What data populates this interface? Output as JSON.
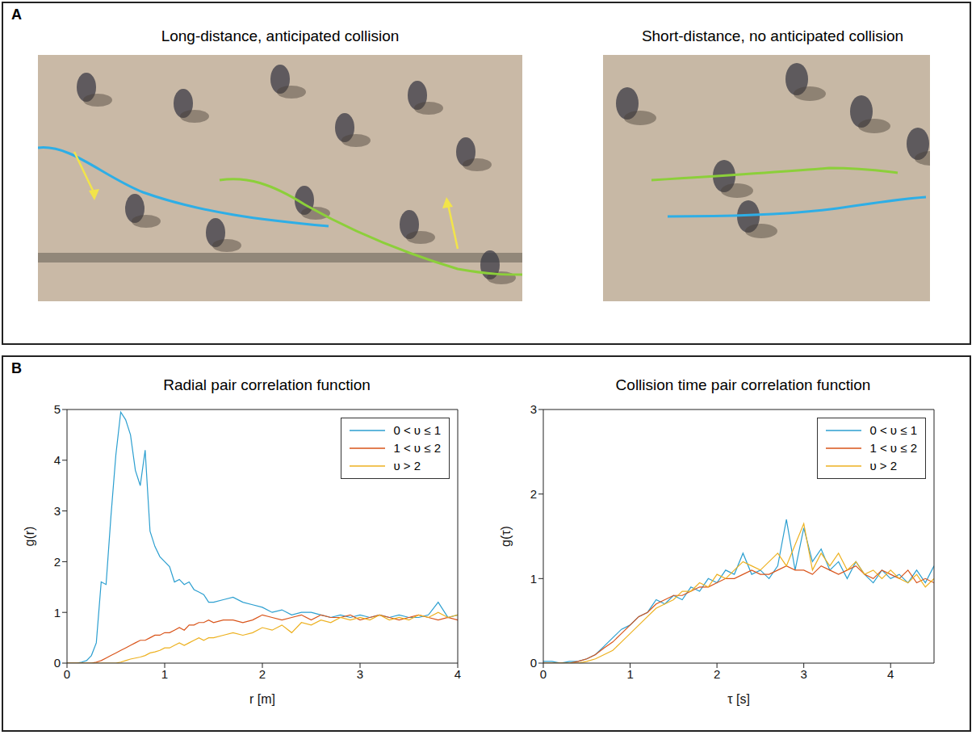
{
  "panel_a": {
    "letter": "A",
    "images": [
      {
        "title": "Long-distance, anticipated collision"
      },
      {
        "title": "Short-distance, no anticipated collision"
      }
    ]
  },
  "panel_b": {
    "letter": "B"
  },
  "chart_data": [
    {
      "type": "line",
      "title": "Radial pair correlation function",
      "x_label": "r  [m]",
      "y_label": "g(r)",
      "xlim": [
        0,
        4
      ],
      "xticks": [
        0,
        1,
        2,
        3,
        4
      ],
      "ylim": [
        0,
        5
      ],
      "yticks": [
        0,
        1,
        2,
        3,
        4,
        5
      ],
      "grid": false,
      "legend": "top-right",
      "x": [
        0,
        0.05,
        0.1,
        0.15,
        0.2,
        0.25,
        0.3,
        0.35,
        0.4,
        0.45,
        0.5,
        0.55,
        0.6,
        0.65,
        0.7,
        0.75,
        0.8,
        0.85,
        0.9,
        0.95,
        1.0,
        1.05,
        1.1,
        1.15,
        1.2,
        1.25,
        1.3,
        1.35,
        1.4,
        1.45,
        1.5,
        1.6,
        1.7,
        1.8,
        1.9,
        2.0,
        2.1,
        2.2,
        2.3,
        2.4,
        2.5,
        2.6,
        2.7,
        2.8,
        2.9,
        3.0,
        3.1,
        3.2,
        3.3,
        3.4,
        3.5,
        3.6,
        3.7,
        3.8,
        3.9,
        4.0
      ],
      "series": [
        {
          "name": "0 < υ ≤ 1",
          "color": "#2c9fd0",
          "values": [
            0,
            0,
            0,
            0.02,
            0.05,
            0.15,
            0.4,
            1.6,
            1.55,
            2.9,
            4.1,
            4.95,
            4.8,
            4.5,
            3.8,
            3.5,
            4.2,
            2.6,
            2.3,
            2.1,
            2.0,
            1.9,
            1.6,
            1.65,
            1.55,
            1.6,
            1.45,
            1.4,
            1.35,
            1.2,
            1.2,
            1.25,
            1.3,
            1.2,
            1.15,
            1.1,
            1.0,
            1.05,
            0.95,
            1.0,
            1.0,
            0.95,
            0.9,
            0.95,
            0.9,
            0.95,
            0.9,
            0.95,
            0.9,
            0.95,
            0.9,
            0.9,
            0.95,
            1.2,
            0.9,
            0.95
          ]
        },
        {
          "name": "1 < υ ≤ 2",
          "color": "#d9541a",
          "values": [
            0,
            0,
            0,
            0,
            0,
            0,
            0.02,
            0.05,
            0.1,
            0.15,
            0.2,
            0.25,
            0.3,
            0.35,
            0.4,
            0.45,
            0.45,
            0.5,
            0.55,
            0.55,
            0.6,
            0.6,
            0.65,
            0.7,
            0.65,
            0.75,
            0.75,
            0.8,
            0.8,
            0.85,
            0.8,
            0.85,
            0.85,
            0.8,
            0.85,
            0.95,
            0.9,
            0.85,
            0.9,
            0.95,
            0.85,
            0.95,
            0.9,
            0.9,
            0.95,
            0.85,
            0.9,
            0.95,
            0.9,
            0.85,
            0.9,
            0.95,
            0.9,
            0.85,
            0.9,
            0.85
          ]
        },
        {
          "name": "υ > 2",
          "color": "#edb120",
          "values": [
            0,
            0,
            0,
            0,
            0,
            0,
            0,
            0,
            0,
            0,
            0,
            0.02,
            0.05,
            0.08,
            0.1,
            0.12,
            0.15,
            0.2,
            0.22,
            0.25,
            0.3,
            0.3,
            0.35,
            0.4,
            0.35,
            0.4,
            0.45,
            0.5,
            0.45,
            0.5,
            0.5,
            0.55,
            0.6,
            0.55,
            0.6,
            0.7,
            0.65,
            0.75,
            0.6,
            0.8,
            0.75,
            0.85,
            0.8,
            0.9,
            0.85,
            0.9,
            0.85,
            0.95,
            0.85,
            0.9,
            0.85,
            0.95,
            0.9,
            1.0,
            0.9,
            0.95
          ]
        }
      ]
    },
    {
      "type": "line",
      "title": "Collision time pair correlation function",
      "x_label": "τ  [s]",
      "y_label": "g(τ)",
      "xlim": [
        0,
        4.5
      ],
      "xticks": [
        0,
        1,
        2,
        3,
        4
      ],
      "ylim": [
        0,
        3
      ],
      "yticks": [
        0,
        1,
        2,
        3
      ],
      "grid": false,
      "legend": "top-right",
      "x": [
        0,
        0.1,
        0.2,
        0.3,
        0.4,
        0.5,
        0.6,
        0.7,
        0.8,
        0.9,
        1.0,
        1.1,
        1.2,
        1.3,
        1.4,
        1.5,
        1.6,
        1.7,
        1.8,
        1.9,
        2.0,
        2.1,
        2.2,
        2.3,
        2.4,
        2.5,
        2.6,
        2.7,
        2.8,
        2.9,
        3.0,
        3.1,
        3.2,
        3.3,
        3.4,
        3.5,
        3.6,
        3.7,
        3.8,
        3.9,
        4.0,
        4.1,
        4.2,
        4.3,
        4.4,
        4.5
      ],
      "series": [
        {
          "name": "0 < υ ≤ 1",
          "color": "#2c9fd0",
          "values": [
            0.02,
            0.02,
            0,
            0.02,
            0.02,
            0.05,
            0.1,
            0.2,
            0.3,
            0.4,
            0.45,
            0.55,
            0.6,
            0.75,
            0.7,
            0.8,
            0.75,
            0.9,
            0.85,
            1.0,
            0.95,
            1.1,
            1.05,
            1.3,
            1.05,
            1.1,
            1.0,
            1.15,
            1.7,
            1.1,
            1.6,
            1.2,
            1.35,
            1.1,
            1.2,
            1.0,
            1.2,
            1.05,
            0.95,
            1.1,
            1.0,
            1.05,
            0.95,
            1.1,
            0.95,
            1.15
          ]
        },
        {
          "name": "1 < υ ≤ 2",
          "color": "#d9541a",
          "values": [
            0,
            0,
            0,
            0,
            0.02,
            0.05,
            0.1,
            0.18,
            0.25,
            0.35,
            0.45,
            0.55,
            0.6,
            0.7,
            0.75,
            0.8,
            0.8,
            0.85,
            0.9,
            0.9,
            0.95,
            1.0,
            1.0,
            1.05,
            1.1,
            1.05,
            1.05,
            1.1,
            1.15,
            1.1,
            1.1,
            1.05,
            1.15,
            1.1,
            1.05,
            1.1,
            1.15,
            1.05,
            1.0,
            1.1,
            1.05,
            1.0,
            1.1,
            0.95,
            1.0,
            0.95
          ]
        },
        {
          "name": "υ > 2",
          "color": "#edb120",
          "values": [
            0,
            0,
            0,
            0,
            0,
            0.02,
            0.05,
            0.1,
            0.15,
            0.25,
            0.35,
            0.45,
            0.55,
            0.65,
            0.7,
            0.75,
            0.85,
            0.85,
            0.95,
            0.9,
            1.05,
            1.0,
            1.1,
            1.2,
            1.15,
            1.1,
            1.2,
            1.3,
            1.15,
            1.4,
            1.65,
            1.1,
            1.3,
            1.15,
            1.3,
            1.1,
            1.2,
            1.05,
            1.1,
            1.0,
            1.1,
            1.0,
            0.95,
            1.05,
            0.9,
            1.0
          ]
        }
      ]
    }
  ]
}
